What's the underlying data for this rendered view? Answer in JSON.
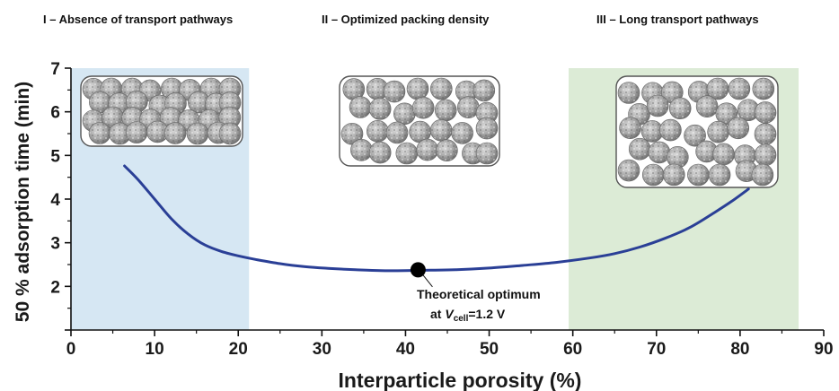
{
  "chart_data": {
    "type": "line",
    "xlabel": "Interparticle porosity (%)",
    "ylabel": "50 % adsorption time (min)",
    "xlim": [
      0,
      90
    ],
    "ylim": [
      1,
      7
    ],
    "x_ticks": [
      "0",
      "10",
      "20",
      "30",
      "40",
      "50",
      "60",
      "70",
      "80",
      "90"
    ],
    "y_ticks": [
      "2",
      "3",
      "4",
      "5",
      "6",
      "7"
    ],
    "grid": false,
    "series": [
      {
        "color": "#2a3f96",
        "x": [
          6.4,
          8,
          10,
          12,
          14,
          16,
          18,
          20,
          22,
          25,
          28,
          31,
          34,
          37,
          40,
          43,
          46,
          50,
          54,
          58,
          62,
          65,
          68,
          71,
          74,
          77,
          79,
          81
        ],
        "y": [
          4.76,
          4.45,
          4.0,
          3.55,
          3.2,
          2.95,
          2.8,
          2.7,
          2.62,
          2.52,
          2.45,
          2.41,
          2.38,
          2.36,
          2.36,
          2.37,
          2.38,
          2.42,
          2.48,
          2.55,
          2.65,
          2.75,
          2.9,
          3.1,
          3.35,
          3.7,
          3.95,
          4.23
        ]
      }
    ],
    "regions": [
      {
        "label": "I – Absence of transport pathways",
        "x_range": [
          0,
          21.3
        ],
        "color": "#d6e7f3"
      },
      {
        "label": "II – Optimized packing density",
        "x_range": [
          21.3,
          59.5
        ],
        "color": "#ffffff"
      },
      {
        "label": "III – Long transport pathways",
        "x_range": [
          59.5,
          87
        ],
        "color": "#dcebd6"
      }
    ],
    "optimum_point": {
      "x": 41.5,
      "y": 2.38
    },
    "annotation": {
      "line1": "Theoretical optimum",
      "line2_prefix": "at ",
      "line2_var": "V",
      "line2_sub": "cell",
      "line2_suffix": "=1.2 V"
    }
  }
}
